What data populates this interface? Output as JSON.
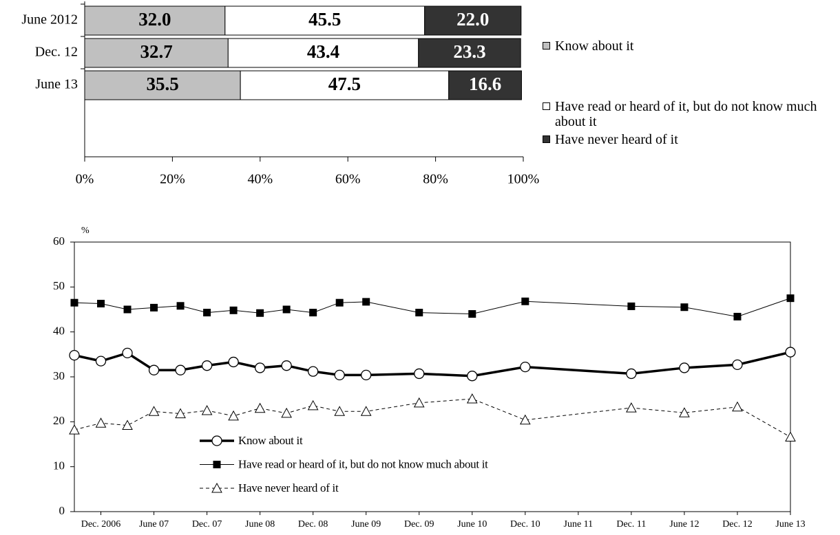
{
  "chart_data": [
    {
      "type": "bar",
      "orientation": "horizontal",
      "stacked": true,
      "categories": [
        "June 2012",
        "Dec. 12",
        "June 13"
      ],
      "series": [
        {
          "name": "Know about it",
          "color": "#c0c0c0",
          "label_color": "#000000",
          "values": [
            32.0,
            32.7,
            35.5
          ],
          "value_labels": [
            "32.0",
            "32.7",
            "35.5"
          ]
        },
        {
          "name": "Have read or heard of it, but do not know much about it",
          "color": "#ffffff",
          "label_color": "#000000",
          "values": [
            45.5,
            43.4,
            47.5
          ],
          "value_labels": [
            "45.5",
            "43.4",
            "47.5"
          ]
        },
        {
          "name": "Have never heard of it",
          "color": "#333333",
          "label_color": "#ffffff",
          "values": [
            22.0,
            23.3,
            16.6
          ],
          "value_labels": [
            "22.0",
            "23.3",
            "16.6"
          ]
        }
      ],
      "xlim": [
        0,
        100
      ],
      "xticks": [
        {
          "value": 0,
          "label": "0%"
        },
        {
          "value": 20,
          "label": "20%"
        },
        {
          "value": 40,
          "label": "40%"
        },
        {
          "value": 60,
          "label": "60%"
        },
        {
          "value": 80,
          "label": "80%"
        },
        {
          "value": 100,
          "label": "100%"
        }
      ],
      "legend": "right"
    },
    {
      "type": "line",
      "y_label": "%",
      "categories": [
        null,
        "Dec. 2006",
        null,
        "June 07",
        null,
        "Dec. 07",
        null,
        "June 08",
        null,
        "Dec. 08",
        null,
        "June 09",
        null,
        "Dec. 09",
        null,
        "June 10",
        null,
        "Dec. 10",
        null,
        "June 11",
        null,
        "Dec. 11",
        null,
        "June 12",
        null,
        "Dec. 12",
        null,
        "June 13"
      ],
      "series": [
        {
          "name": "Know about it",
          "color": "#000000",
          "marker": "circle",
          "line_style": "solid",
          "line_width": 3.5,
          "values": [
            34.8,
            33.5,
            35.3,
            31.5,
            31.5,
            32.5,
            33.3,
            32.0,
            32.5,
            31.2,
            30.4,
            30.4,
            null,
            30.7,
            null,
            30.2,
            null,
            32.2,
            null,
            null,
            null,
            30.7,
            null,
            32.0,
            null,
            32.7,
            null,
            35.5
          ]
        },
        {
          "name": "Have read or heard of it, but do not know much about it",
          "color": "#000000",
          "marker": "square",
          "line_style": "solid",
          "line_width": 1,
          "values": [
            46.5,
            46.3,
            45.0,
            45.4,
            45.8,
            44.3,
            44.8,
            44.2,
            45.0,
            44.3,
            46.5,
            46.7,
            null,
            44.3,
            null,
            44.0,
            null,
            46.8,
            null,
            null,
            null,
            45.7,
            null,
            45.5,
            null,
            43.4,
            null,
            47.5
          ]
        },
        {
          "name": "Have never heard of it",
          "color": "#000000",
          "marker": "triangle",
          "line_style": "dashed",
          "line_width": 1,
          "values": [
            18.2,
            19.7,
            19.2,
            22.3,
            21.8,
            22.5,
            21.3,
            23.0,
            21.9,
            23.6,
            22.3,
            22.3,
            null,
            24.2,
            null,
            25.1,
            null,
            20.4,
            null,
            null,
            null,
            23.1,
            null,
            22.0,
            null,
            23.3,
            null,
            16.6
          ]
        }
      ],
      "ylim": [
        0,
        60
      ],
      "yticks": [
        0,
        10,
        20,
        30,
        40,
        50,
        60
      ],
      "legend": "lower-left"
    }
  ]
}
